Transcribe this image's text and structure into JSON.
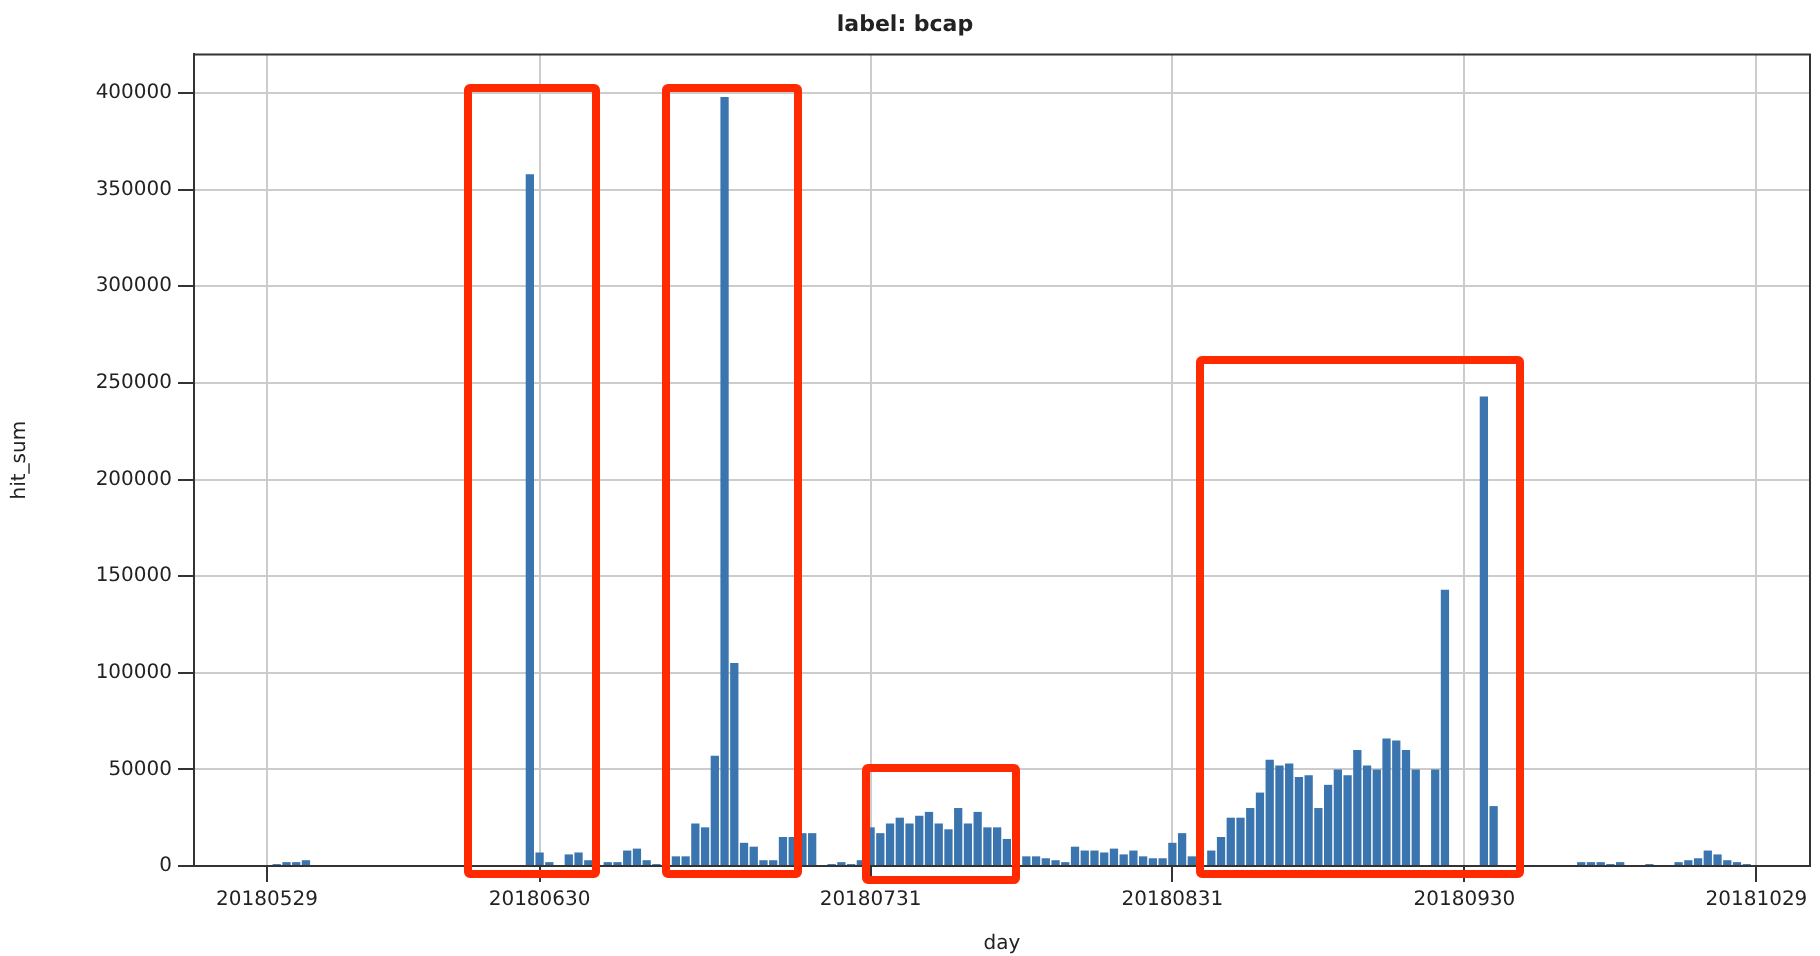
{
  "chart_data": {
    "type": "bar",
    "title": "label: bcap",
    "xlabel": "day",
    "ylabel": "hit_sum",
    "categories": [
      null,
      null,
      null,
      null,
      null,
      null,
      null,
      "20180529",
      null,
      null,
      null,
      null,
      null,
      null,
      null,
      null,
      null,
      null,
      null,
      null,
      null,
      null,
      null,
      null,
      null,
      null,
      null,
      null,
      null,
      null,
      null,
      null,
      null,
      null,
      null,
      "20180630",
      null,
      null,
      null,
      null,
      null,
      null,
      null,
      null,
      null,
      null,
      null,
      null,
      null,
      null,
      null,
      null,
      null,
      null,
      null,
      null,
      null,
      null,
      null,
      null,
      null,
      null,
      null,
      null,
      null,
      null,
      null,
      null,
      null,
      "20180731",
      null,
      null,
      null,
      null,
      null,
      null,
      null,
      null,
      null,
      null,
      null,
      null,
      null,
      null,
      null,
      null,
      null,
      null,
      null,
      null,
      null,
      null,
      null,
      null,
      null,
      null,
      null,
      null,
      null,
      null,
      "20180831",
      null,
      null,
      null,
      null,
      null,
      null,
      null,
      null,
      null,
      null,
      null,
      null,
      null,
      null,
      null,
      null,
      null,
      null,
      null,
      null,
      null,
      null,
      null,
      null,
      null,
      null,
      null,
      null,
      null,
      "20180930",
      null,
      null,
      null,
      null,
      null,
      null,
      null,
      null,
      null,
      null,
      null,
      null,
      null,
      null,
      null,
      null,
      null,
      null,
      null,
      null,
      null,
      null,
      null,
      null,
      null,
      null,
      null,
      null,
      null,
      "20181029",
      null,
      null,
      null,
      null,
      null
    ],
    "values": [
      0,
      0,
      0,
      0,
      0,
      0,
      0,
      0,
      1000,
      2000,
      2000,
      3000,
      0,
      0,
      0,
      0,
      0,
      0,
      0,
      0,
      0,
      0,
      0,
      0,
      0,
      0,
      0,
      0,
      0,
      0,
      0,
      0,
      0,
      0,
      358000,
      7000,
      2000,
      0,
      6000,
      7000,
      3000,
      null,
      2000,
      2000,
      8000,
      9000,
      3000,
      1000,
      0,
      5000,
      5000,
      22000,
      20000,
      57000,
      398000,
      105000,
      12000,
      10000,
      3000,
      3000,
      15000,
      15000,
      17000,
      17000,
      0,
      1000,
      2000,
      1000,
      3000,
      20000,
      17000,
      22000,
      25000,
      22000,
      26000,
      28000,
      22000,
      19000,
      30000,
      22000,
      28000,
      20000,
      20000,
      14000,
      null,
      5000,
      5000,
      4000,
      3000,
      2000,
      10000,
      8000,
      8000,
      7000,
      9000,
      6000,
      8000,
      5000,
      4000,
      4000,
      12000,
      17000,
      5000,
      null,
      8000,
      15000,
      25000,
      25000,
      30000,
      38000,
      55000,
      52000,
      53000,
      46000,
      47000,
      30000,
      42000,
      50000,
      47000,
      60000,
      52000,
      50000,
      66000,
      65000,
      60000,
      50000,
      0,
      50000,
      143000,
      0,
      0,
      0,
      243000,
      31000,
      0,
      0,
      0,
      0,
      0,
      0,
      0,
      0,
      2000,
      2000,
      2000,
      1000,
      2000,
      0,
      0,
      1000,
      0,
      0,
      2000,
      3000,
      4000,
      8000,
      6000,
      3000,
      2000,
      1000,
      0,
      0,
      0,
      0,
      0,
      0
    ],
    "color": "#3b75af",
    "ylim": [
      0,
      420000
    ],
    "yticks": [
      0,
      50000,
      100000,
      150000,
      200000,
      250000,
      300000,
      350000,
      400000
    ],
    "grid": true
  }
}
